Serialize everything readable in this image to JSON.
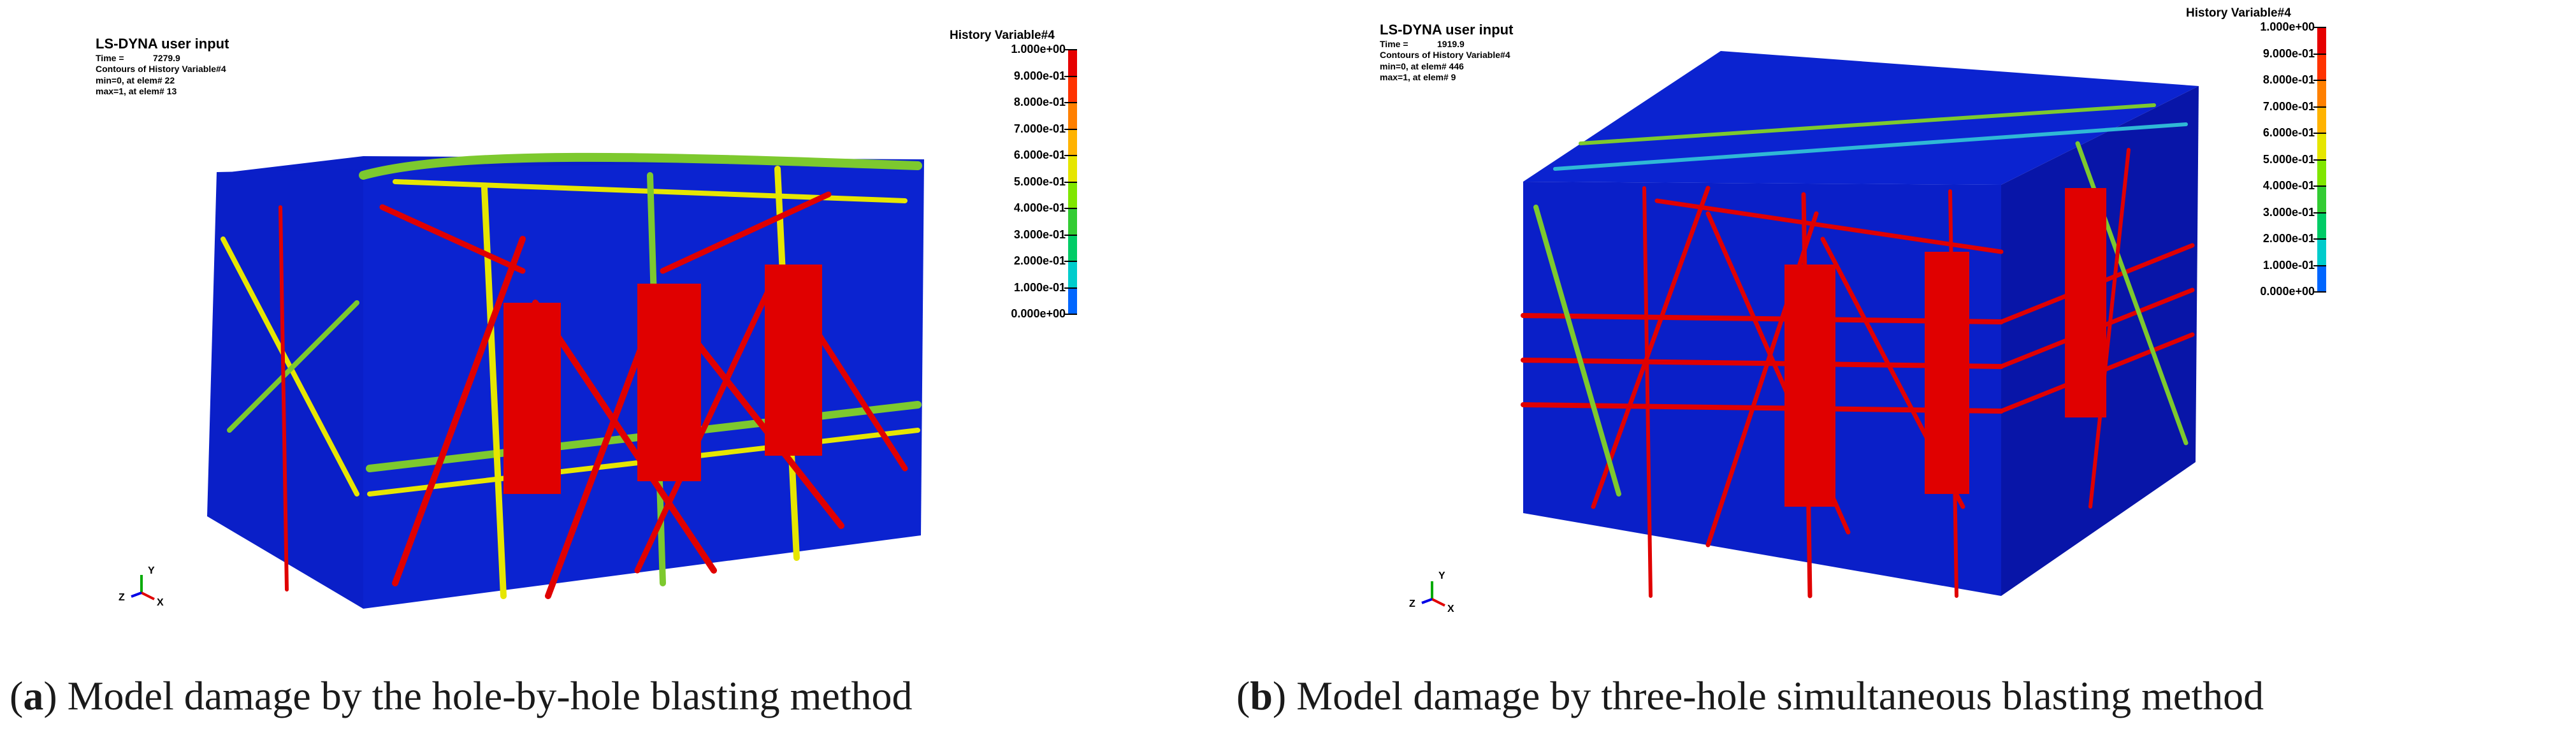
{
  "panels": [
    {
      "header": {
        "title": "LS-DYNA user input",
        "time_label": "Time =",
        "time_value": "7279.9",
        "contour": "Contours of History Variable#4",
        "min": "min=0, at elem# 22",
        "max": "max=1, at elem# 13"
      },
      "legend": {
        "title": "History Variable#4",
        "labels": [
          "1.000e+00",
          "9.000e-01",
          "8.000e-01",
          "7.000e-01",
          "6.000e-01",
          "5.000e-01",
          "4.000e-01",
          "3.000e-01",
          "2.000e-01",
          "1.000e-01",
          "0.000e+00"
        ]
      },
      "axes": {
        "x": "X",
        "y": "Y",
        "z": "Z"
      },
      "caption": {
        "letter": "a",
        "text": "Model damage by the hole-by-hole blasting method"
      }
    },
    {
      "header": {
        "title": "LS-DYNA user input",
        "time_label": "Time =",
        "time_value": "1919.9",
        "contour": "Contours of History Variable#4",
        "min": "min=0, at elem# 446",
        "max": "max=1, at elem# 9"
      },
      "legend": {
        "title": "History Variable#4",
        "labels": [
          "1.000e+00",
          "9.000e-01",
          "8.000e-01",
          "7.000e-01",
          "6.000e-01",
          "5.000e-01",
          "4.000e-01",
          "3.000e-01",
          "2.000e-01",
          "1.000e-01",
          "0.000e+00"
        ]
      },
      "axes": {
        "x": "X",
        "y": "Y",
        "z": "Z"
      },
      "caption": {
        "letter": "b",
        "text": "Model damage by three-hole simultaneous blasting method"
      }
    }
  ],
  "colors": {
    "scale": [
      "#e60000",
      "#ff3300",
      "#ff8000",
      "#ffb300",
      "#e6e600",
      "#80e600",
      "#33cc33",
      "#00cc66",
      "#00cccc",
      "#0066ff",
      "#0000e6"
    ],
    "body": "#0a1fc8",
    "body_dark": "#0815a8",
    "damage": "#e00000",
    "green": "#7dc92e",
    "cyan": "#2fb8d6"
  }
}
